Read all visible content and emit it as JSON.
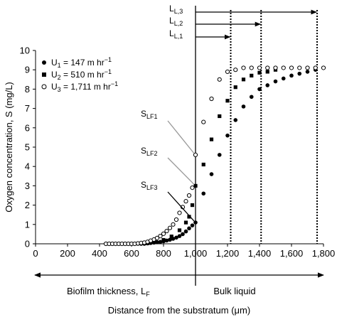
{
  "chart_data": {
    "type": "scatter",
    "xlabel": "Distance from the substratum (μm)",
    "ylabel": "Oxygen concentration, S (mg/L)",
    "xlim": [
      0,
      1800
    ],
    "ylim": [
      0,
      10
    ],
    "x_ticks": [
      "0",
      "200",
      "400",
      "600",
      "800",
      "1,000",
      "1,200",
      "1,400",
      "1,600",
      "1,800"
    ],
    "y_ticks": [
      "0",
      "1",
      "2",
      "3",
      "4",
      "5",
      "6",
      "7",
      "8",
      "9",
      "10"
    ],
    "grid": false,
    "legend_position": "top-left",
    "series": [
      {
        "name": "U1 = 147 m hr⁻¹",
        "label_main": "U",
        "label_sub": "1",
        "label_rest": " = 147 m hr",
        "label_sup": "−1",
        "marker": "filled-circle",
        "points": [
          [
            460,
            0
          ],
          [
            480,
            0
          ],
          [
            500,
            0
          ],
          [
            520,
            0
          ],
          [
            540,
            0
          ],
          [
            560,
            0
          ],
          [
            580,
            0
          ],
          [
            600,
            0
          ],
          [
            620,
            0
          ],
          [
            640,
            0
          ],
          [
            660,
            0
          ],
          [
            680,
            0
          ],
          [
            700,
            0.02
          ],
          [
            720,
            0.04
          ],
          [
            740,
            0.06
          ],
          [
            760,
            0.08
          ],
          [
            780,
            0.1
          ],
          [
            800,
            0.13
          ],
          [
            820,
            0.17
          ],
          [
            840,
            0.21
          ],
          [
            860,
            0.26
          ],
          [
            880,
            0.32
          ],
          [
            900,
            0.4
          ],
          [
            920,
            0.5
          ],
          [
            940,
            0.64
          ],
          [
            960,
            0.8
          ],
          [
            980,
            0.95
          ],
          [
            1000,
            1.1
          ],
          [
            1050,
            2.6
          ],
          [
            1100,
            3.6
          ],
          [
            1150,
            4.6
          ],
          [
            1200,
            5.6
          ],
          [
            1250,
            6.4
          ],
          [
            1300,
            7.1
          ],
          [
            1350,
            7.6
          ],
          [
            1400,
            8.0
          ],
          [
            1450,
            8.2
          ],
          [
            1500,
            8.4
          ],
          [
            1550,
            8.55
          ],
          [
            1600,
            8.7
          ],
          [
            1650,
            8.8
          ],
          [
            1700,
            8.9
          ],
          [
            1750,
            9.0
          ]
        ]
      },
      {
        "name": "U2 = 510 m hr⁻¹",
        "label_main": "U",
        "label_sub": "2",
        "label_rest": " = 510 m hr",
        "label_sup": "−1",
        "marker": "filled-square",
        "points": [
          [
            700,
            0.03
          ],
          [
            750,
            0.08
          ],
          [
            800,
            0.2
          ],
          [
            850,
            0.38
          ],
          [
            900,
            0.7
          ],
          [
            940,
            1.1
          ],
          [
            960,
            1.4
          ],
          [
            980,
            2.0
          ],
          [
            1000,
            3.0
          ],
          [
            1050,
            4.1
          ],
          [
            1100,
            5.4
          ],
          [
            1150,
            6.6
          ],
          [
            1200,
            7.4
          ],
          [
            1250,
            8.1
          ],
          [
            1300,
            8.5
          ],
          [
            1350,
            8.7
          ],
          [
            1400,
            8.85
          ],
          [
            1450,
            8.9
          ],
          [
            1500,
            9.0
          ]
        ]
      },
      {
        "name": "U3 = 1,711 m hr⁻¹",
        "label_main": "U",
        "label_sub": "3",
        "label_rest": " = 1,711 m hr",
        "label_sup": "−1",
        "marker": "open-circle",
        "points": [
          [
            440,
            0
          ],
          [
            460,
            0
          ],
          [
            480,
            0
          ],
          [
            500,
            0
          ],
          [
            520,
            0
          ],
          [
            540,
            0
          ],
          [
            560,
            0
          ],
          [
            580,
            0
          ],
          [
            600,
            0
          ],
          [
            620,
            0
          ],
          [
            640,
            0.02
          ],
          [
            660,
            0.04
          ],
          [
            680,
            0.06
          ],
          [
            700,
            0.1
          ],
          [
            720,
            0.16
          ],
          [
            740,
            0.22
          ],
          [
            760,
            0.3
          ],
          [
            780,
            0.4
          ],
          [
            800,
            0.52
          ],
          [
            820,
            0.66
          ],
          [
            840,
            0.82
          ],
          [
            860,
            1.0
          ],
          [
            880,
            1.25
          ],
          [
            900,
            1.6
          ],
          [
            920,
            1.9
          ],
          [
            940,
            2.2
          ],
          [
            960,
            2.5
          ],
          [
            980,
            2.9
          ],
          [
            1000,
            4.6
          ],
          [
            1050,
            6.3
          ],
          [
            1100,
            7.5
          ],
          [
            1150,
            8.5
          ],
          [
            1200,
            8.9
          ],
          [
            1250,
            9.0
          ],
          [
            1300,
            9.1
          ],
          [
            1350,
            9.1
          ],
          [
            1400,
            9.1
          ],
          [
            1450,
            9.1
          ],
          [
            1500,
            9.1
          ],
          [
            1550,
            9.1
          ],
          [
            1600,
            9.1
          ],
          [
            1650,
            9.1
          ],
          [
            1700,
            9.1
          ],
          [
            1750,
            9.1
          ],
          [
            1800,
            9.1
          ]
        ]
      }
    ],
    "reference_lines": [
      {
        "x": 1000,
        "style": "solid",
        "name": "biofilm-surface"
      },
      {
        "x": 1220,
        "style": "dotted",
        "name": "LL1-boundary"
      },
      {
        "x": 1410,
        "style": "dotted",
        "name": "LL2-boundary"
      },
      {
        "x": 1760,
        "style": "dotted",
        "name": "LL3-boundary"
      }
    ],
    "annotations": [
      {
        "name": "SLF1",
        "main": "S",
        "sub": "LF1",
        "target": [
          1000,
          4.6
        ]
      },
      {
        "name": "SLF2",
        "main": "S",
        "sub": "LF2",
        "target": [
          1000,
          3.0
        ]
      },
      {
        "name": "SLF3",
        "main": "S",
        "sub": "LF3",
        "target": [
          1000,
          1.1
        ]
      }
    ],
    "thickness_arrows": [
      {
        "name": "LL1",
        "main": "L",
        "sub": "L,1",
        "x_start": 1000,
        "x_end": 1220
      },
      {
        "name": "LL2",
        "main": "L",
        "sub": "L,2",
        "x_start": 1000,
        "x_end": 1410
      },
      {
        "name": "LL3",
        "main": "L",
        "sub": "L,3",
        "x_start": 1000,
        "x_end": 1760
      }
    ],
    "regions": {
      "left_label_main": "Biofilm thickness, L",
      "left_label_sub": "F",
      "right_label": "Bulk liquid"
    }
  }
}
